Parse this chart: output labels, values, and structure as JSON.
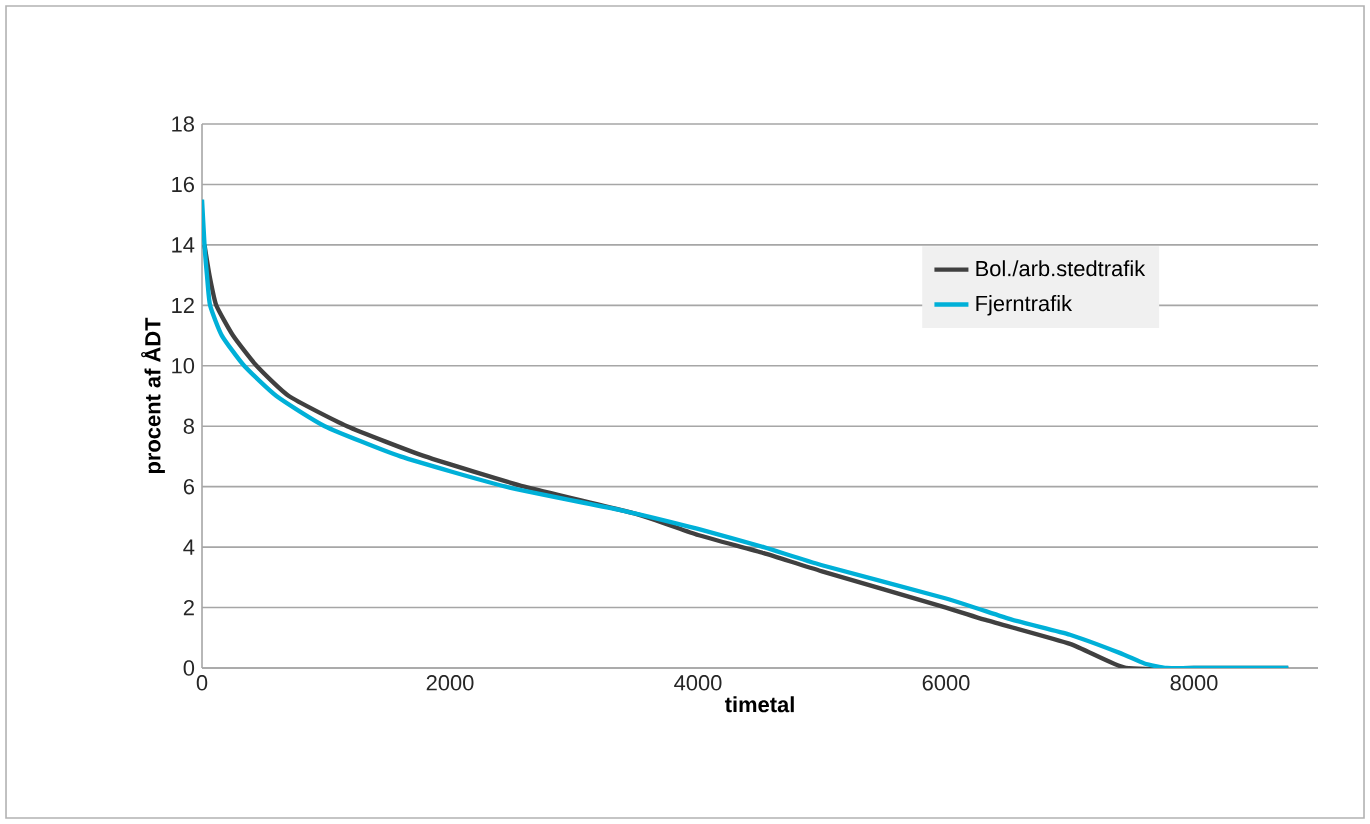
{
  "chart_data": {
    "type": "line",
    "xlabel": "timetal",
    "ylabel": "procent af ÅDT",
    "series": [
      {
        "name": "Bol./arb.stedtrafik",
        "color": "#404040",
        "x": [
          20,
          60,
          115,
          250,
          440,
          700,
          1170,
          1800,
          2600,
          3500,
          4000,
          4530,
          5000,
          6000,
          6310,
          7000,
          7450,
          8000,
          8760
        ],
        "values": [
          14,
          13,
          12,
          11,
          10,
          9,
          8,
          7,
          6,
          5.1,
          4.4,
          3.8,
          3.2,
          2,
          1.6,
          0.8,
          0,
          0,
          0
        ]
      },
      {
        "name": "Fjerntrafik",
        "color": "#00b0d8",
        "x": [
          0,
          20,
          40,
          65,
          160,
          340,
          600,
          990,
          1600,
          2450,
          3400,
          4000,
          4530,
          5000,
          6000,
          6530,
          7000,
          7400,
          7600,
          7780,
          8000,
          8760
        ],
        "values": [
          15.5,
          14,
          13,
          12,
          11,
          10,
          9,
          8,
          7,
          6,
          5.2,
          4.6,
          4.0,
          3.4,
          2.3,
          1.6,
          1.1,
          0.5,
          0.15,
          0,
          0,
          0
        ]
      }
    ],
    "xlim": [
      0,
      9000
    ],
    "xticks": [
      0,
      2000,
      4000,
      6000,
      8000
    ],
    "ylim": [
      0,
      18
    ],
    "yticks": [
      0,
      2,
      4,
      6,
      8,
      10,
      12,
      14,
      16,
      18
    ],
    "grid": "y",
    "legend": "right",
    "marker": "none",
    "line_style": "solid"
  }
}
